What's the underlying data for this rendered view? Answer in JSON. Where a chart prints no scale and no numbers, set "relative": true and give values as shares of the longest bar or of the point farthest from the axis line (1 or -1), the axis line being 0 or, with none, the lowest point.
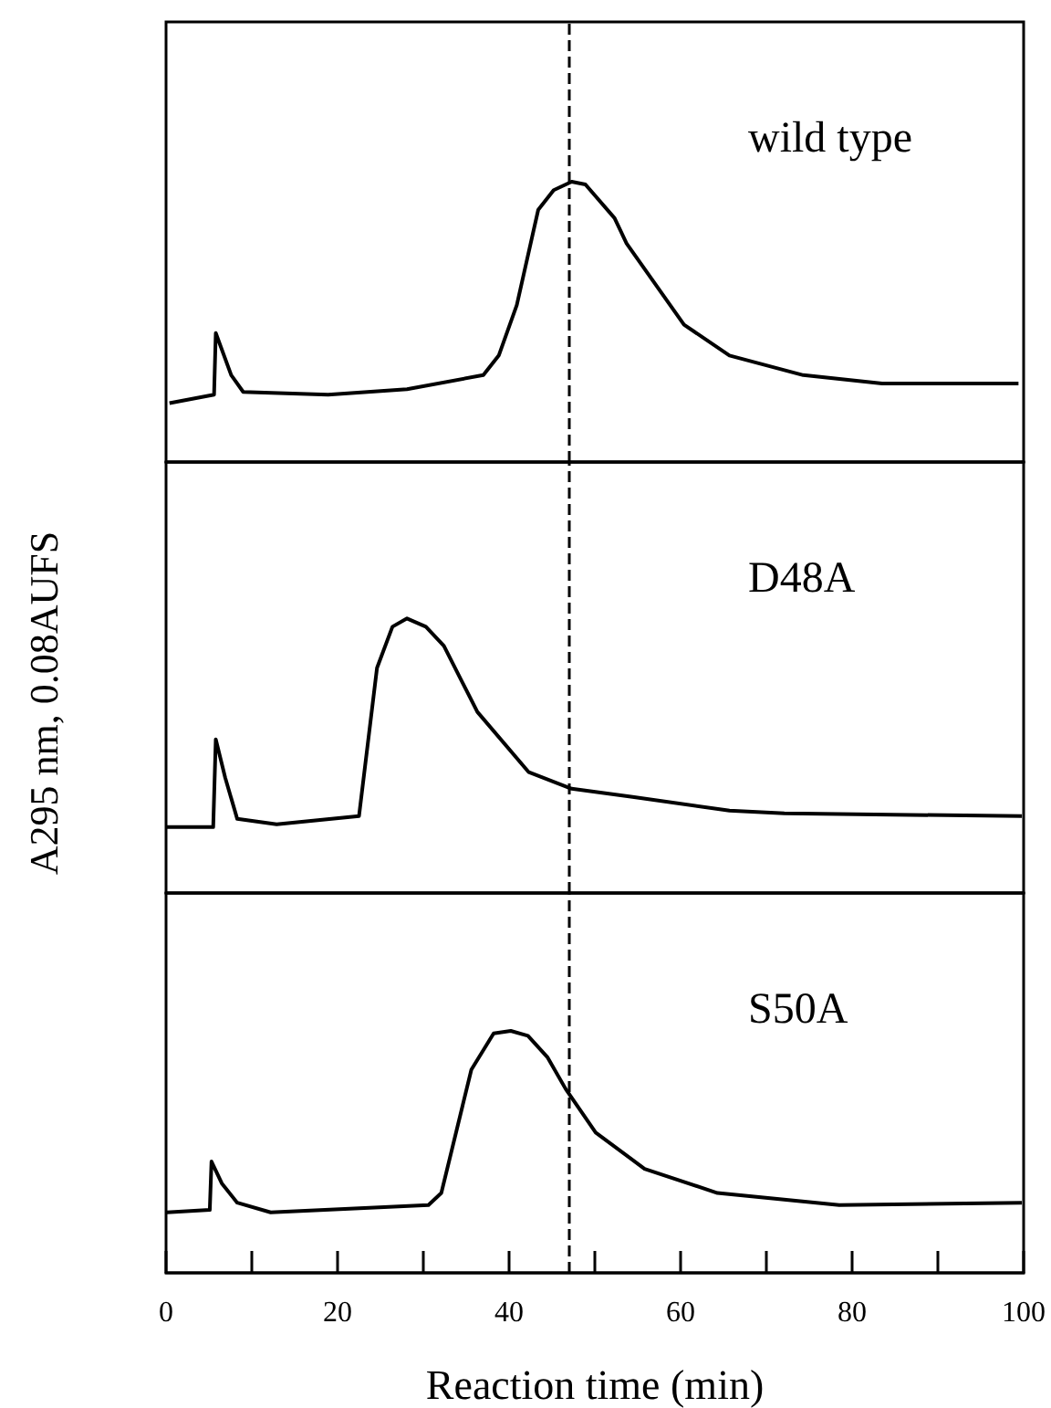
{
  "chart_data": [
    {
      "type": "line",
      "relative": true,
      "xlim": [
        0,
        100
      ],
      "tick_labels": false,
      "annotations": [
        "wild type"
      ],
      "ref_lines": [
        {
          "axis": "x",
          "value": 47,
          "color": "#000000",
          "line_style": "dashed"
        }
      ],
      "series": [
        {
          "color": "#000000",
          "x": [
            0.4,
            5.6,
            5.8,
            7.6,
            9.0,
            18.9,
            28.1,
            37.0,
            38.8,
            40.9,
            43.4,
            45.2,
            47.3,
            48.9,
            52.3,
            53.7,
            60.4,
            65.7,
            74.3,
            83.5,
            99.4
          ],
          "values": [
            0.21,
            0.24,
            0.46,
            0.31,
            0.25,
            0.24,
            0.26,
            0.31,
            0.38,
            0.56,
            0.9,
            0.97,
            1.0,
            0.99,
            0.87,
            0.78,
            0.49,
            0.38,
            0.31,
            0.28,
            0.28
          ]
        }
      ]
    },
    {
      "type": "line",
      "relative": true,
      "xlim": [
        0,
        100
      ],
      "tick_labels": false,
      "annotations": [
        "D48A"
      ],
      "ylabel": "A295 nm, 0.08AUFS",
      "ref_lines": [
        {
          "axis": "x",
          "value": 47,
          "color": "#000000",
          "line_style": "dashed"
        }
      ],
      "series": [
        {
          "color": "#000000",
          "x": [
            0,
            5.5,
            5.8,
            6.9,
            8.3,
            12.9,
            22.5,
            24.6,
            26.4,
            28.1,
            30.3,
            32.4,
            36.3,
            42.3,
            47.3,
            54.4,
            65.7,
            72.1,
            99.8
          ],
          "values": [
            0.24,
            0.24,
            0.56,
            0.42,
            0.27,
            0.25,
            0.28,
            0.82,
            0.97,
            1.0,
            0.97,
            0.9,
            0.66,
            0.44,
            0.38,
            0.35,
            0.3,
            0.29,
            0.28
          ]
        }
      ]
    },
    {
      "type": "line",
      "relative": true,
      "xlim": [
        0,
        100
      ],
      "tick_labels": "x",
      "annotations": [
        "S50A"
      ],
      "xlabel": "Reaction time (min)",
      "xticks": [
        0,
        {
          "value": 10,
          "label": null
        },
        20,
        {
          "value": 30,
          "label": null
        },
        40,
        {
          "value": 50,
          "label": null
        },
        60,
        {
          "value": 70,
          "label": null
        },
        80,
        {
          "value": 90,
          "label": null
        },
        100
      ],
      "ref_lines": [
        {
          "axis": "x",
          "value": 47,
          "color": "#000000",
          "line_style": "dashed"
        }
      ],
      "series": [
        {
          "color": "#000000",
          "x": [
            0.1,
            5.1,
            5.3,
            6.5,
            8.3,
            12.2,
            30.6,
            32.1,
            35.6,
            38.2,
            40.2,
            42.2,
            44.5,
            46.6,
            50.1,
            55.8,
            64.3,
            78.5,
            99.8
          ],
          "values": [
            0.25,
            0.26,
            0.46,
            0.37,
            0.29,
            0.25,
            0.28,
            0.33,
            0.84,
            0.99,
            1.0,
            0.98,
            0.89,
            0.76,
            0.58,
            0.43,
            0.33,
            0.28,
            0.29
          ]
        }
      ]
    }
  ]
}
